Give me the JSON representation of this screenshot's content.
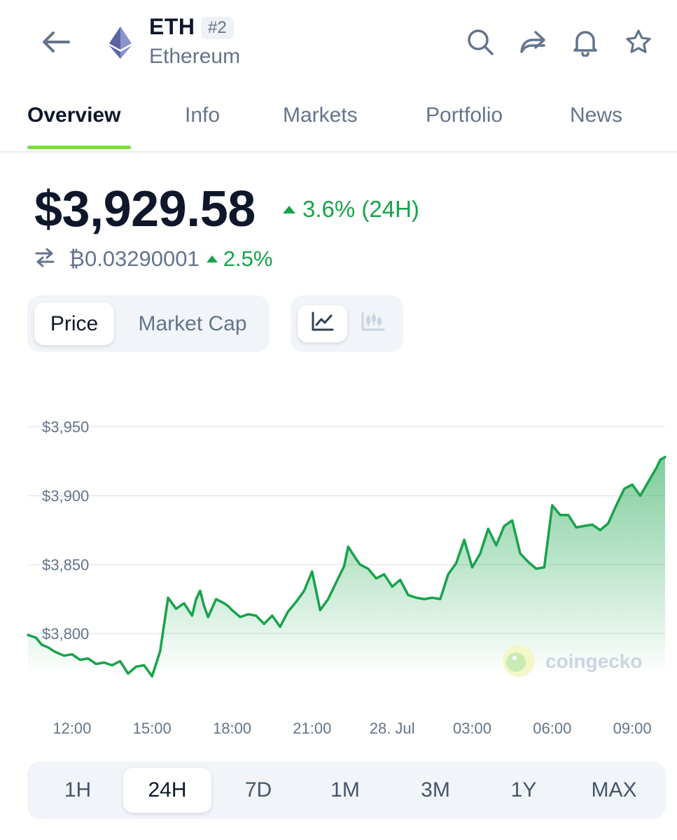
{
  "header": {
    "symbol": "ETH",
    "rank": "#2",
    "name": "Ethereum"
  },
  "tabs": [
    {
      "label": "Overview",
      "active": true
    },
    {
      "label": "Info"
    },
    {
      "label": "Markets"
    },
    {
      "label": "Portfolio"
    },
    {
      "label": "News"
    }
  ],
  "price": {
    "value": "$3,929.58",
    "change_24h": "3.6% (24H)",
    "btc_value": "₿0.03290001",
    "btc_change": "2.5%"
  },
  "chart_toggle": {
    "price_label": "Price",
    "market_cap_label": "Market Cap",
    "selected": "Price",
    "view_icons": [
      "line-chart-icon",
      "candlestick-icon"
    ]
  },
  "colors": {
    "positive": "#16a34a",
    "line": "#16a34a",
    "tab_accent": "#7cd94f"
  },
  "chart_data": {
    "type": "line",
    "x_tick_labels": [
      "12:00",
      "15:00",
      "18:00",
      "21:00",
      "28. Jul",
      "03:00",
      "06:00",
      "09:00"
    ],
    "y_tick_labels": [
      "$3,950",
      "$3,900",
      "$3,850",
      "$3,800"
    ],
    "y_ticks": [
      3950,
      3900,
      3850,
      3800
    ],
    "ylim": [
      3762,
      3965
    ],
    "xlim": [
      -0.55,
      7.41
    ],
    "grid": true,
    "watermark": "coingecko",
    "series": [
      {
        "x": [
          -0.55,
          -0.45,
          -0.38,
          -0.3,
          -0.22,
          -0.1,
          0.0,
          0.1,
          0.2,
          0.3,
          0.4,
          0.5,
          0.6,
          0.7,
          0.8,
          0.9,
          1.0,
          1.1,
          1.2,
          1.3,
          1.4,
          1.5,
          1.55,
          1.6,
          1.65,
          1.7,
          1.8,
          1.9,
          1.95,
          2.0,
          2.1,
          2.2,
          2.3,
          2.4,
          2.5,
          2.6,
          2.7,
          2.8,
          2.9,
          3.0,
          3.1,
          3.2,
          3.3,
          3.4,
          3.45,
          3.55,
          3.6,
          3.7,
          3.8,
          3.9,
          4.0,
          4.1,
          4.2,
          4.3,
          4.4,
          4.5,
          4.6,
          4.7,
          4.8,
          4.9,
          5.0,
          5.1,
          5.2,
          5.3,
          5.4,
          5.5,
          5.6,
          5.7,
          5.8,
          5.9,
          6.0,
          6.1,
          6.2,
          6.3,
          6.4,
          6.5,
          6.6,
          6.7,
          6.8,
          6.9,
          7.0,
          7.1,
          7.2,
          7.3,
          7.35,
          7.41
        ],
        "y": [
          3799,
          3797,
          3792,
          3790,
          3787,
          3784,
          3785,
          3781,
          3782,
          3778,
          3779,
          3777,
          3780,
          3771,
          3776,
          3777,
          3769,
          3787,
          3826,
          3818,
          3822,
          3813,
          3825,
          3831,
          3820,
          3812,
          3825,
          3822,
          3820,
          3817,
          3812,
          3814,
          3813,
          3807,
          3813,
          3805,
          3816,
          3823,
          3831,
          3845,
          3817,
          3825,
          3837,
          3849,
          3863,
          3854,
          3850,
          3847,
          3840,
          3843,
          3834,
          3839,
          3828,
          3826,
          3825,
          3826,
          3825,
          3843,
          3851,
          3868,
          3848,
          3858,
          3876,
          3864,
          3878,
          3882,
          3858,
          3852,
          3847,
          3848,
          3893,
          3886,
          3886,
          3877,
          3878,
          3879,
          3875,
          3880,
          3893,
          3905,
          3908,
          3900,
          3910,
          3920,
          3926,
          3928
        ]
      }
    ]
  },
  "ranges": [
    {
      "label": "1H"
    },
    {
      "label": "24H",
      "active": true
    },
    {
      "label": "7D"
    },
    {
      "label": "1M"
    },
    {
      "label": "3M"
    },
    {
      "label": "1Y"
    },
    {
      "label": "MAX"
    }
  ]
}
